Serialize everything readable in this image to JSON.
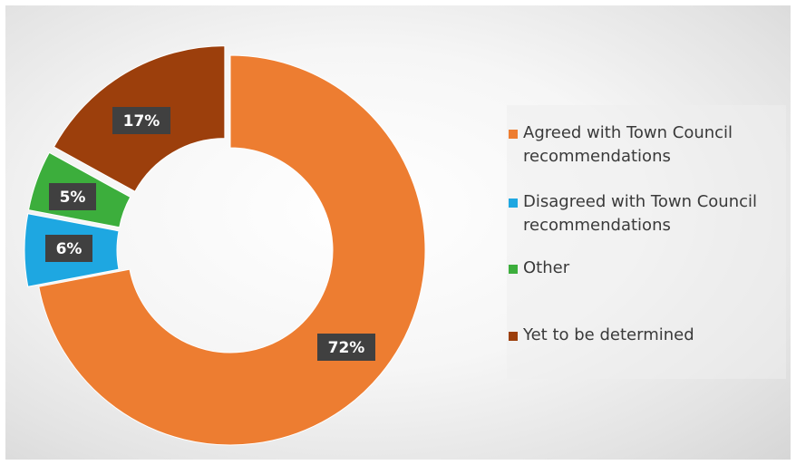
{
  "chart_data": {
    "type": "pie",
    "variant": "donut",
    "title": "",
    "series": [
      {
        "values": [
          72,
          6,
          5,
          17
        ]
      }
    ],
    "categories": [
      "Agreed with Town Council recommendations",
      "Disagreed with Town Council recommendations",
      "Other",
      "Yet to be determined"
    ],
    "slices": [
      {
        "label": "Agreed with Town Council recommendations",
        "value": 72,
        "data_label": "72%",
        "color": "#ed7d31"
      },
      {
        "label": "Disagreed with Town Council recommendations",
        "value": 6,
        "data_label": "6%",
        "color": "#1ea7e1",
        "exploded": true
      },
      {
        "label": "Other",
        "value": 5,
        "data_label": "5%",
        "color": "#3cae3c",
        "exploded": true
      },
      {
        "label": "Yet to be determined",
        "value": 17,
        "data_label": "17%",
        "color": "#9c3f0c",
        "exploded": true
      }
    ],
    "legend": {
      "position": "right",
      "items": [
        "Agreed with Town Council recommendations",
        "Disagreed with Town Council recommendations",
        "Other",
        "Yet to be determined"
      ]
    },
    "data_label_background": "#404040"
  }
}
